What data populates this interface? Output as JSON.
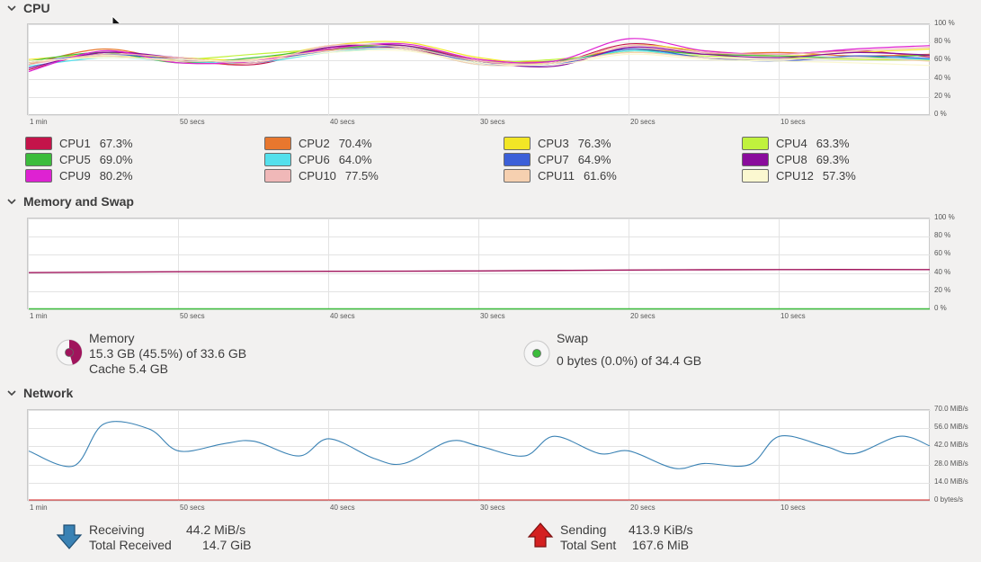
{
  "colors": {
    "cpu": [
      "#c4144a",
      "#e8772e",
      "#f2e626",
      "#c0f23d",
      "#3cbc3c",
      "#54e0ec",
      "#3c60d8",
      "#8a0c9c",
      "#de22d2",
      "#f0b8b8",
      "#f6d0b0",
      "#fbf8d0"
    ],
    "memory": "#a0145c",
    "swap": "#3cbc3c",
    "receiving": "#3a82b4",
    "sending": "#d42020"
  },
  "sections": {
    "cpu": "CPU",
    "memory": "Memory and Swap",
    "network": "Network"
  },
  "x_ticks": [
    "1 min",
    "50 secs",
    "40 secs",
    "30 secs",
    "20 secs",
    "10 secs"
  ],
  "cpu_y_ticks": [
    "100 %",
    "80 %",
    "60 %",
    "40 %",
    "20 %",
    "0 %"
  ],
  "mem_y_ticks": [
    "100 %",
    "80 %",
    "60 %",
    "40 %",
    "20 %",
    "0 %"
  ],
  "net_y_ticks": [
    "70.0 MiB/s",
    "56.0 MiB/s",
    "42.0 MiB/s",
    "28.0 MiB/s",
    "14.0 MiB/s",
    "0 bytes/s"
  ],
  "cpus": [
    {
      "name": "CPU1",
      "value": "67.3%"
    },
    {
      "name": "CPU2",
      "value": "70.4%"
    },
    {
      "name": "CPU3",
      "value": "76.3%"
    },
    {
      "name": "CPU4",
      "value": "63.3%"
    },
    {
      "name": "CPU5",
      "value": "69.0%"
    },
    {
      "name": "CPU6",
      "value": "64.0%"
    },
    {
      "name": "CPU7",
      "value": "64.9%"
    },
    {
      "name": "CPU8",
      "value": "69.3%"
    },
    {
      "name": "CPU9",
      "value": "80.2%"
    },
    {
      "name": "CPU10",
      "value": "77.5%"
    },
    {
      "name": "CPU11",
      "value": "61.6%"
    },
    {
      "name": "CPU12",
      "value": "57.3%"
    }
  ],
  "memory": {
    "title": "Memory",
    "usage": "15.3 GB (45.5%) of 33.6 GB",
    "cache": "Cache 5.4 GB",
    "fraction": 0.455
  },
  "swap": {
    "title": "Swap",
    "usage": "0 bytes (0.0%) of 34.4 GB",
    "fraction": 0.0
  },
  "network": {
    "receiving_label": "Receiving",
    "receiving_value": "44.2 MiB/s",
    "total_received_label": "Total Received",
    "total_received_value": "14.7 GiB",
    "sending_label": "Sending",
    "sending_value": "413.9 KiB/s",
    "total_sent_label": "Total Sent",
    "total_sent_value": "167.6 MiB"
  },
  "chart_data": [
    {
      "type": "line",
      "title": "CPU",
      "ylim": [
        0,
        100
      ],
      "x": [
        60,
        55,
        50,
        45,
        40,
        35,
        30,
        25,
        20,
        15,
        10,
        5,
        0
      ],
      "series": [
        {
          "name": "CPU1",
          "values": [
            52,
            72,
            64,
            58,
            78,
            76,
            62,
            60,
            82,
            72,
            70,
            74,
            67
          ]
        },
        {
          "name": "CPU2",
          "values": [
            58,
            76,
            62,
            60,
            75,
            80,
            64,
            62,
            76,
            70,
            72,
            68,
            70
          ]
        },
        {
          "name": "CPU3",
          "values": [
            64,
            70,
            66,
            64,
            80,
            84,
            66,
            60,
            80,
            74,
            68,
            72,
            76
          ]
        },
        {
          "name": "CPU4",
          "values": [
            60,
            68,
            64,
            70,
            76,
            78,
            62,
            64,
            72,
            68,
            66,
            64,
            63
          ]
        },
        {
          "name": "CPU5",
          "values": [
            62,
            72,
            60,
            66,
            76,
            80,
            60,
            62,
            74,
            70,
            68,
            66,
            69
          ]
        },
        {
          "name": "CPU6",
          "values": [
            56,
            66,
            62,
            60,
            72,
            76,
            58,
            60,
            74,
            66,
            64,
            66,
            64
          ]
        },
        {
          "name": "CPU7",
          "values": [
            60,
            70,
            64,
            62,
            74,
            78,
            60,
            58,
            76,
            66,
            62,
            68,
            65
          ]
        },
        {
          "name": "CPU8",
          "values": [
            54,
            72,
            66,
            60,
            78,
            80,
            62,
            56,
            78,
            70,
            66,
            72,
            69
          ]
        },
        {
          "name": "CPU9",
          "values": [
            50,
            74,
            60,
            62,
            76,
            82,
            64,
            62,
            88,
            74,
            70,
            76,
            80
          ]
        },
        {
          "name": "CPU10",
          "values": [
            58,
            70,
            66,
            60,
            80,
            78,
            62,
            60,
            80,
            72,
            70,
            74,
            78
          ]
        },
        {
          "name": "CPU11",
          "values": [
            60,
            68,
            62,
            64,
            74,
            76,
            58,
            60,
            72,
            66,
            64,
            66,
            62
          ]
        },
        {
          "name": "CPU12",
          "values": [
            62,
            66,
            64,
            62,
            72,
            74,
            60,
            58,
            70,
            64,
            62,
            60,
            57
          ]
        }
      ]
    },
    {
      "type": "line",
      "title": "Memory and Swap",
      "ylim": [
        0,
        100
      ],
      "x": [
        60,
        50,
        40,
        30,
        20,
        10,
        0
      ],
      "series": [
        {
          "name": "Memory",
          "values": [
            42,
            43,
            43.5,
            44,
            45,
            45.5,
            45.5
          ]
        },
        {
          "name": "Swap",
          "values": [
            0,
            0,
            0,
            0,
            0,
            0,
            0
          ]
        }
      ]
    },
    {
      "type": "line",
      "title": "Network",
      "ylim": [
        0,
        70
      ],
      "x": [
        60,
        57,
        55,
        52,
        50,
        47,
        45,
        42,
        40,
        37,
        35,
        32,
        30,
        27,
        25,
        22,
        20,
        17,
        15,
        12,
        10,
        7,
        5,
        2,
        0
      ],
      "series": [
        {
          "name": "Receiving",
          "values": [
            40,
            28,
            62,
            58,
            40,
            46,
            48,
            36,
            50,
            34,
            30,
            48,
            44,
            36,
            52,
            38,
            40,
            26,
            30,
            29,
            52,
            44,
            38,
            52,
            44.2
          ]
        },
        {
          "name": "Sending",
          "values": [
            0.4,
            0.4,
            0.4,
            0.4,
            0.4,
            0.4,
            0.4,
            0.4,
            0.4,
            0.4,
            0.4,
            0.4,
            0.4,
            0.4,
            0.4,
            0.4,
            0.4,
            0.4,
            0.4,
            0.4,
            0.4,
            0.4,
            0.4,
            0.4,
            0.4
          ]
        }
      ]
    }
  ]
}
